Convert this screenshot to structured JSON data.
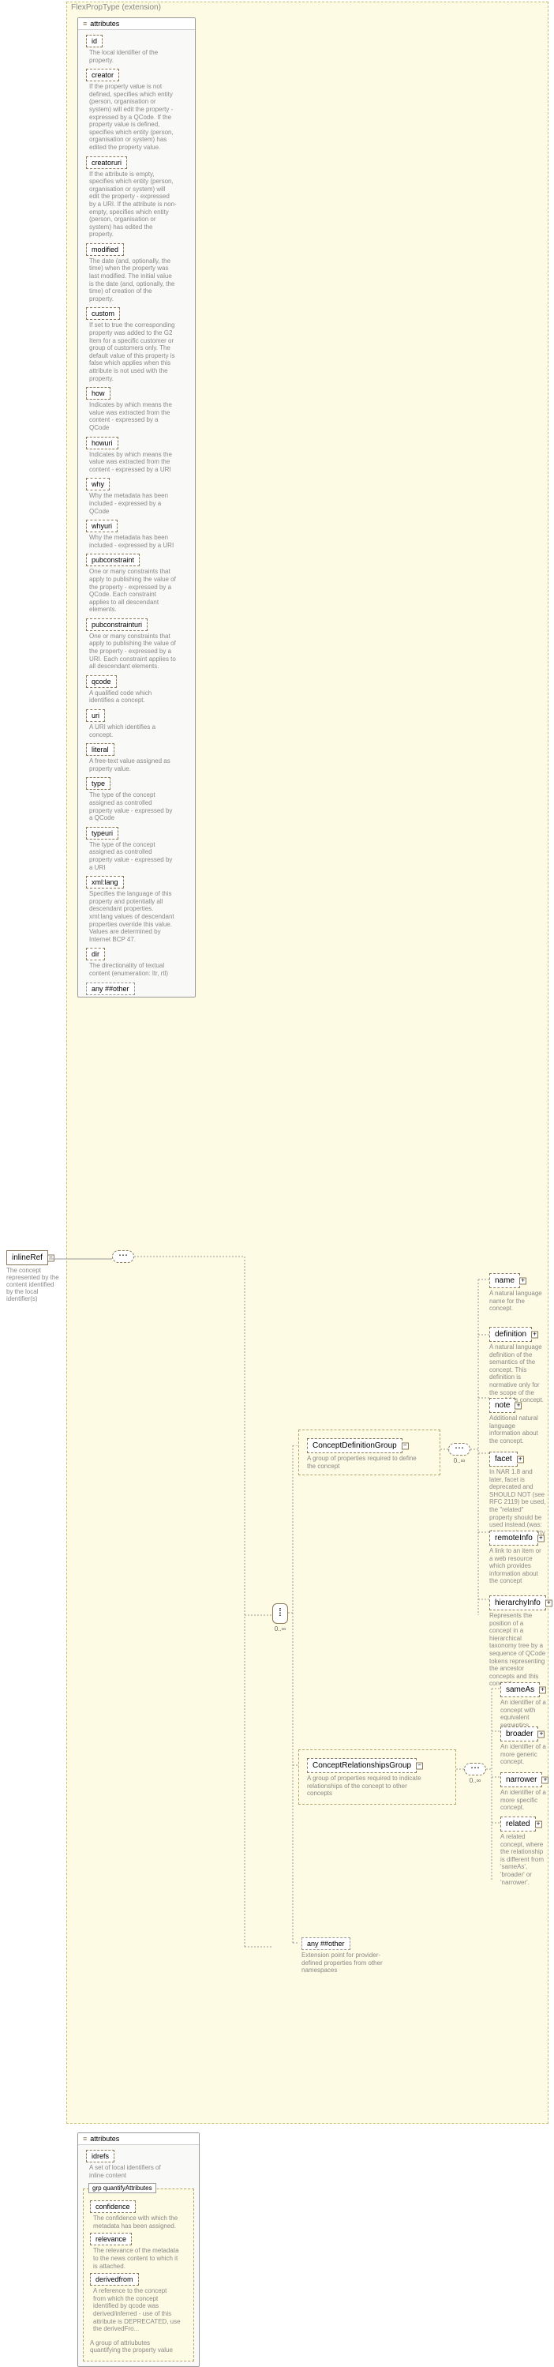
{
  "root": {
    "name": "inlineRef",
    "desc": "The concept represented by the content identified by the local identifier(s)"
  },
  "typeLabel": "FlexPropType (extension)",
  "attributesLabel": "attributes",
  "mainAttrs": [
    {
      "name": "id",
      "desc": "The local identifier of the property."
    },
    {
      "name": "creator",
      "desc": "If the property value is not defined, specifies which entity (person, organisation or system) will edit the property - expressed by a QCode. If the property value is defined, specifies which entity (person, organisation or system) has edited the property value."
    },
    {
      "name": "creatoruri",
      "desc": "If the attribute is empty, specifies which entity (person, organisation or system) will edit the property - expressed by a URI. If the attribute is non-empty, specifies which entity (person, organisation or system) has edited the property."
    },
    {
      "name": "modified",
      "desc": "The date (and, optionally, the time) when the property was last modified. The initial value is the date (and, optionally, the time) of creation of the property."
    },
    {
      "name": "custom",
      "desc": "If set to true the corresponding property was added to the G2 Item for a specific customer or group of customers only. The default value of this property is false which applies when this attribute is not used with the property."
    },
    {
      "name": "how",
      "desc": "Indicates by which means the value was extracted from the content - expressed by a QCode"
    },
    {
      "name": "howuri",
      "desc": "Indicates by which means the value was extracted from the content - expressed by a URI"
    },
    {
      "name": "why",
      "desc": "Why the metadata has been included - expressed by a QCode"
    },
    {
      "name": "whyuri",
      "desc": "Why the metadata has been included - expressed by a URI"
    },
    {
      "name": "pubconstraint",
      "desc": "One or many constraints that apply to publishing the value of the property - expressed by a QCode. Each constraint applies to all descendant elements."
    },
    {
      "name": "pubconstrainturi",
      "desc": "One or many constraints that apply to publishing the value of the property - expressed by a URI. Each constraint applies to all descendant elements."
    },
    {
      "name": "qcode",
      "desc": "A qualified code which identifies a concept."
    },
    {
      "name": "uri",
      "desc": "A URI which identifies a concept."
    },
    {
      "name": "literal",
      "desc": "A free-text value assigned as property value."
    },
    {
      "name": "type",
      "desc": "The type of the concept assigned as controlled property value - expressed by a QCode"
    },
    {
      "name": "typeuri",
      "desc": "The type of the concept assigned as controlled property value - expressed by a URI"
    },
    {
      "name": "xml:lang",
      "desc": "Specifies the language of this property and potentially all descendant properties. xml:lang values of descendant properties override this value. Values are determined by Internet BCP 47."
    },
    {
      "name": "dir",
      "desc": "The directionality of textual content (enumeration: ltr, rtl)"
    }
  ],
  "anyAttr": "any ##other",
  "group1": {
    "name": "ConceptDefinitionGroup",
    "desc": "A group of properties required to define the concept",
    "elements": [
      {
        "name": "name",
        "desc": "A natural language name for the concept."
      },
      {
        "name": "definition",
        "desc": "A natural language definition of the semantics of the concept. This definition is normative only for the scope of the use of this concept."
      },
      {
        "name": "note",
        "desc": "Additional natural language information about the concept."
      },
      {
        "name": "facet",
        "desc": "In NAR 1.8 and later, facet is deprecated and SHOULD NOT (see RFC 2119) be used, the \"related\" property should be used instead.(was: An intrinsic property of the concept.)"
      },
      {
        "name": "remoteInfo",
        "desc": "A link to an item or a web resource which provides information about the concept"
      },
      {
        "name": "hierarchyInfo",
        "desc": "Represents the position of a concept in a hierarchical taxonomy tree by a sequence of QCode tokens representing the ancestor concepts and this concept"
      }
    ]
  },
  "group2": {
    "name": "ConceptRelationshipsGroup",
    "desc": "A group of properties required to indicate relationships of the concept to other concepts",
    "elements": [
      {
        "name": "sameAs",
        "desc": "An identifier of a concept with equivalent semantics"
      },
      {
        "name": "broader",
        "desc": "An identifier of a more generic concept."
      },
      {
        "name": "narrower",
        "desc": "An identifier of a more specific concept."
      },
      {
        "name": "related",
        "desc": "A related concept, where the relationship is different from 'sameAs', 'broader' or 'narrower'."
      }
    ]
  },
  "anyElement": {
    "label": "any ##other",
    "desc": "Extension point for provider-defined properties from other namespaces"
  },
  "bottomAttrs": {
    "idrefs": {
      "name": "idrefs",
      "desc": "A set of local identifiers of inline content"
    },
    "groupName": "grp quantifyAttributes",
    "items": [
      {
        "name": "confidence",
        "desc": "The confidence with which the metadata has been assigned."
      },
      {
        "name": "relevance",
        "desc": "The relevance of the metadata to the news content to which it is attached."
      },
      {
        "name": "derivedfrom",
        "desc": "A reference to the concept from which the concept identified by qcode was derived/inferred - use of this attribute is DEPRECATED, use the derivedFro..."
      }
    ],
    "groupDesc": "A group of attriubutes quantifying the property value"
  },
  "cardinality": "0..∞",
  "colors": {
    "containerBg": "#fdfbe3",
    "containerBorder": "#c8bf76",
    "boxBorder": "#8a7a5a",
    "descColor": "#888888"
  }
}
